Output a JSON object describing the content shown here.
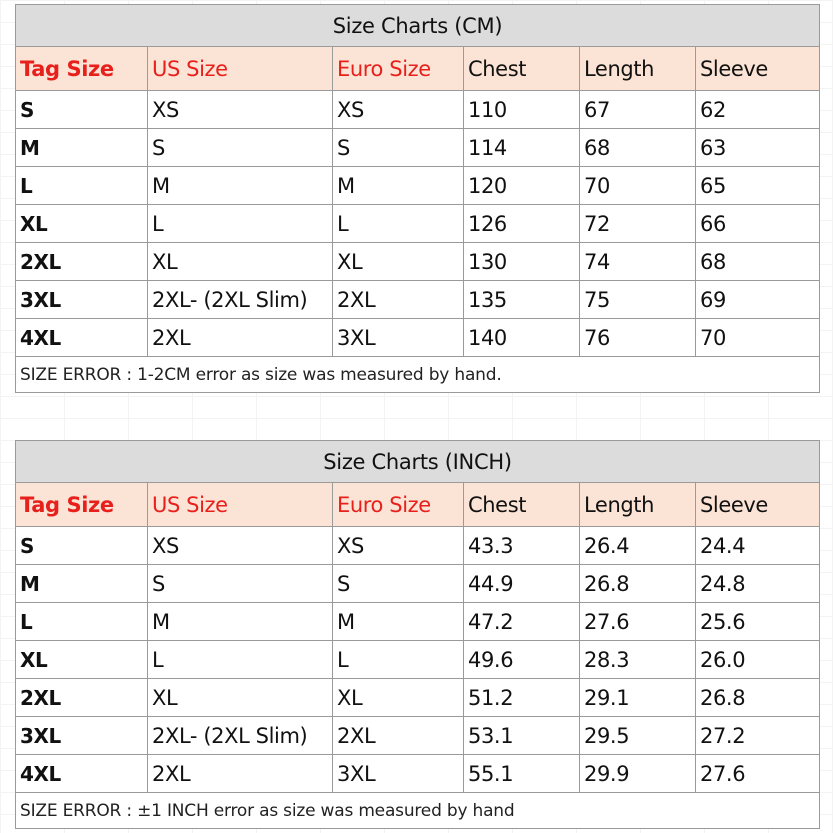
{
  "charts": [
    {
      "title": "Size Charts (CM)",
      "headers": [
        "Tag Size",
        "US Size",
        "Euro Size",
        "Chest",
        "Length",
        "Sleeve"
      ],
      "rows": [
        [
          "S",
          "XS",
          "XS",
          "110",
          "67",
          "62"
        ],
        [
          "M",
          "S",
          "S",
          "114",
          "68",
          "63"
        ],
        [
          "L",
          "M",
          "M",
          "120",
          "70",
          "65"
        ],
        [
          "XL",
          "L",
          "L",
          "126",
          "72",
          "66"
        ],
        [
          "2XL",
          "XL",
          "XL",
          "130",
          "74",
          "68"
        ],
        [
          "3XL",
          "2XL- (2XL Slim)",
          "2XL",
          "135",
          "75",
          "69"
        ],
        [
          "4XL",
          "2XL",
          "3XL",
          "140",
          "76",
          "70"
        ]
      ],
      "note": "SIZE ERROR : 1-2CM error as size was measured by hand."
    },
    {
      "title": "Size Charts (INCH)",
      "headers": [
        "Tag Size",
        "US Size",
        "Euro Size",
        "Chest",
        "Length",
        "Sleeve"
      ],
      "rows": [
        [
          "S",
          "XS",
          "XS",
          "43.3",
          "26.4",
          "24.4"
        ],
        [
          "M",
          "S",
          "S",
          "44.9",
          "26.8",
          "24.8"
        ],
        [
          "L",
          "M",
          "M",
          "47.2",
          "27.6",
          "25.6"
        ],
        [
          "XL",
          "L",
          "L",
          "49.6",
          "28.3",
          "26.0"
        ],
        [
          "2XL",
          "XL",
          "XL",
          "51.2",
          "29.1",
          "26.8"
        ],
        [
          "3XL",
          "2XL- (2XL Slim)",
          "2XL",
          "53.1",
          "29.5",
          "27.2"
        ],
        [
          "4XL",
          "2XL",
          "3XL",
          "55.1",
          "29.9",
          "27.6"
        ]
      ],
      "note": "SIZE ERROR : ±1 INCH error as size was measured by hand"
    }
  ],
  "colors": {
    "header_bg": "#fbe4d5",
    "title_bg": "#dcdcdc",
    "header_red": "#e8201c",
    "border": "#9a9a9a"
  }
}
